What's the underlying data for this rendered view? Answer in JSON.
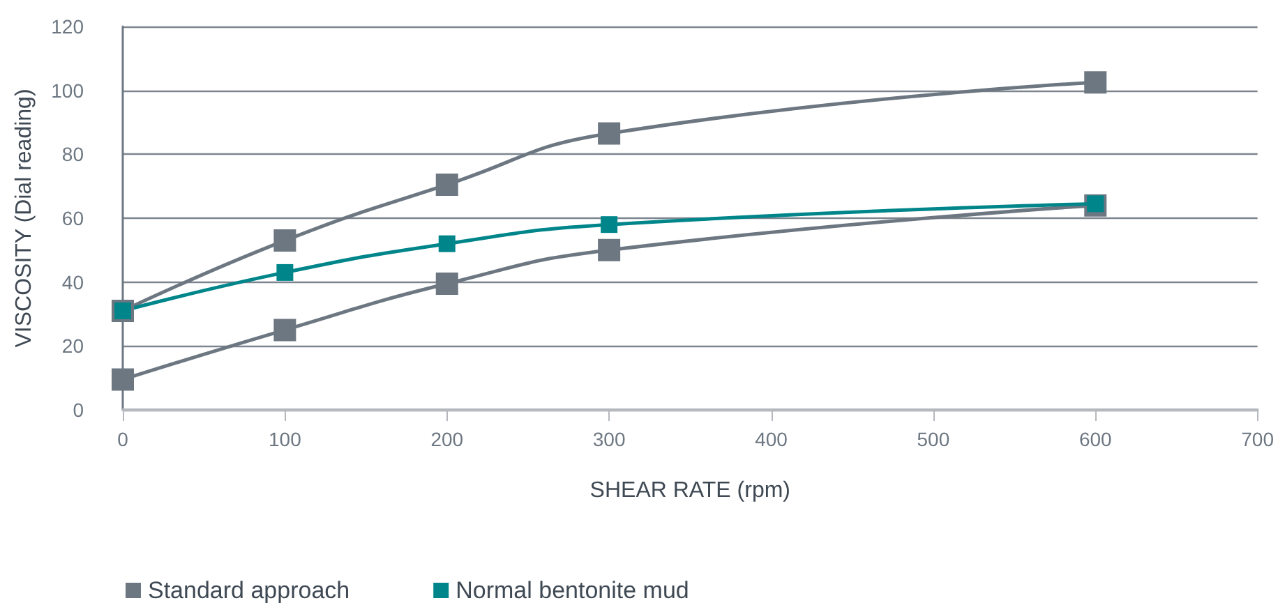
{
  "chart_data": {
    "type": "line",
    "xlabel": "SHEAR RATE (rpm)",
    "ylabel": "VISCOSITY (Dial reading)",
    "x": [
      0,
      100,
      200,
      300,
      600
    ],
    "series": [
      {
        "name": "Standard approach",
        "color": "#6d7782",
        "values": [
          31,
          53,
          70.5,
          86.5,
          102.5
        ]
      },
      {
        "color": "#6d7782",
        "values": [
          9.5,
          25,
          39.5,
          50,
          64
        ]
      },
      {
        "name": "Normal bentonite mud",
        "color": "#00868a",
        "values": [
          31,
          43,
          52,
          58,
          64.5
        ]
      }
    ],
    "xlim": [
      0,
      700
    ],
    "xticks": [
      0,
      100,
      200,
      300,
      400,
      500,
      600,
      700
    ],
    "ylim": [
      0,
      120
    ],
    "yticks": [
      0,
      20,
      40,
      60,
      80,
      100,
      120
    ],
    "grid": "y",
    "legend": "bottom left",
    "marker": "square",
    "line_style": "solid"
  }
}
